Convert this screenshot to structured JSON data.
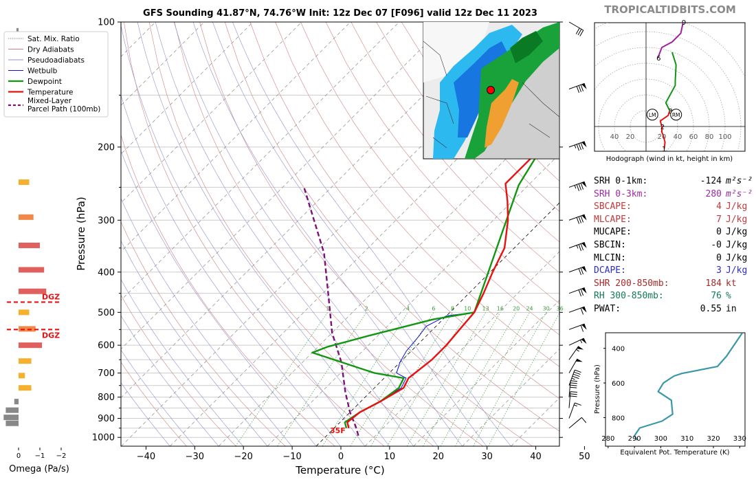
{
  "title": "GFS Sounding 41.87°N, 74.76°W Init: 12z Dec 07 [F096] valid 12z Dec 11 2023",
  "site": "TROPICALTIDBITS.COM",
  "colors": {
    "temperature": "#e81010",
    "dewpoint": "#129612",
    "wetbulb": "#1010d0",
    "parcel": "#7a1078",
    "dry_adiabat": "#d08080",
    "pseudo_adiabat": "#9090d0",
    "mixing_ratio": "#3a9a3a",
    "theta_e": "#3a97a8"
  },
  "chart_data": [
    {
      "type": "line",
      "name": "skew-t",
      "xlabel": "Temperature (°C)",
      "ylabel": "Pressure (hPa)",
      "xlim": [
        -40,
        50
      ],
      "ylim": [
        1050,
        100
      ],
      "y_scale": "log",
      "x_ticks": [
        -40,
        -30,
        -20,
        -10,
        0,
        10,
        20,
        30,
        40,
        50
      ],
      "y_ticks": [
        100,
        200,
        300,
        400,
        500,
        600,
        700,
        800,
        900,
        1000
      ],
      "legend": [
        {
          "label": "Sat. Mix. Ratio",
          "style": "mix"
        },
        {
          "label": "Dry Adiabats",
          "style": "dry"
        },
        {
          "label": "Pseudoadiabats",
          "style": "pseudo"
        },
        {
          "label": "Wetbulb",
          "style": "wetbulb"
        },
        {
          "label": "Dewpoint",
          "style": "dewpoint"
        },
        {
          "label": "Temperature",
          "style": "temperature"
        },
        {
          "label": "Mixed-Layer",
          "label2": "Parcel Path (100mb)",
          "style": "parcel"
        }
      ],
      "legend_position": "upper-left",
      "mixing_ratio_labels": [
        "1",
        "2",
        "4",
        "6",
        "8",
        "10",
        "13",
        "16",
        "20",
        "24",
        "30",
        "36"
      ],
      "surface_temp_label": "35F",
      "dgz_label": "DGZ",
      "dgz_pressures": [
        460,
        550
      ],
      "series": [
        {
          "key": "temperature",
          "points": [
            [
              3,
              950
            ],
            [
              1.5,
              920
            ],
            [
              2,
              870
            ],
            [
              4,
              820
            ],
            [
              6,
              760
            ],
            [
              5,
              720
            ],
            [
              6,
              650
            ],
            [
              6,
              600
            ],
            [
              5.5,
              550
            ],
            [
              5,
              500
            ],
            [
              3,
              450
            ],
            [
              0.5,
              400
            ],
            [
              -2,
              350
            ],
            [
              -7,
              300
            ],
            [
              -11,
              270
            ],
            [
              -15,
              245
            ],
            [
              -15,
              200
            ],
            [
              -9,
              175
            ],
            [
              -5,
              150
            ],
            [
              1,
              125
            ],
            [
              5,
              100
            ]
          ]
        },
        {
          "key": "dewpoint",
          "points": [
            [
              2.5,
              950
            ],
            [
              1,
              920
            ],
            [
              2,
              870
            ],
            [
              4,
              820
            ],
            [
              5,
              760
            ],
            [
              4,
              720
            ],
            [
              -3,
              700
            ],
            [
              -20,
              625
            ],
            [
              -18,
              605
            ],
            [
              -12,
              570
            ],
            [
              -2,
              520
            ],
            [
              5,
              500
            ],
            [
              -12,
              247
            ],
            [
              -15,
              200
            ],
            [
              -12,
              163
            ],
            [
              -22,
              143
            ],
            [
              -3,
              100
            ]
          ]
        },
        {
          "key": "wetbulb",
          "points": [
            [
              3,
              950
            ],
            [
              1.5,
              920
            ],
            [
              2,
              870
            ],
            [
              4,
              820
            ],
            [
              5.5,
              760
            ],
            [
              4.5,
              720
            ],
            [
              1.5,
              700
            ],
            [
              0,
              660
            ],
            [
              -1,
              620
            ],
            [
              -1.5,
              570
            ],
            [
              -2,
              540
            ],
            [
              0,
              510
            ],
            [
              5,
              500
            ]
          ]
        },
        {
          "key": "parcel",
          "points": [
            [
              6.5,
              990
            ],
            [
              4,
              940
            ],
            [
              0,
              870
            ],
            [
              -5,
              780
            ],
            [
              -12,
              660
            ],
            [
              -20,
              560
            ],
            [
              -28,
              460
            ],
            [
              -38,
              360
            ],
            [
              -56,
              248
            ]
          ]
        }
      ],
      "omega": {
        "label": "Omega (Pa/s)",
        "x_ticks": [
          "0",
          "−1",
          "−2"
        ],
        "bars": [
          {
            "p": 105,
            "v": 0.1
          },
          {
            "p": 145,
            "v": -0.2
          },
          {
            "p": 243,
            "v": -0.5
          },
          {
            "p": 295,
            "v": -0.7
          },
          {
            "p": 345,
            "v": -1.0
          },
          {
            "p": 395,
            "v": -1.2
          },
          {
            "p": 445,
            "v": -1.3
          },
          {
            "p": 500,
            "v": -0.5
          },
          {
            "p": 548,
            "v": -0.8
          },
          {
            "p": 600,
            "v": -1.1
          },
          {
            "p": 655,
            "v": -0.6
          },
          {
            "p": 710,
            "v": -0.3
          },
          {
            "p": 760,
            "v": -0.6
          },
          {
            "p": 820,
            "v": 0.2
          },
          {
            "p": 860,
            "v": 0.6
          },
          {
            "p": 895,
            "v": 0.7
          },
          {
            "p": 925,
            "v": 0.6
          }
        ]
      },
      "wind_barbs": [
        {
          "p": 100,
          "spd": 30,
          "dir": 300
        },
        {
          "p": 145,
          "spd": 80,
          "dir": 250
        },
        {
          "p": 200,
          "spd": 85,
          "dir": 250
        },
        {
          "p": 250,
          "spd": 85,
          "dir": 250
        },
        {
          "p": 300,
          "spd": 80,
          "dir": 250
        },
        {
          "p": 350,
          "spd": 75,
          "dir": 250
        },
        {
          "p": 400,
          "spd": 70,
          "dir": 250
        },
        {
          "p": 450,
          "spd": 70,
          "dir": 250
        },
        {
          "p": 500,
          "spd": 60,
          "dir": 250
        },
        {
          "p": 550,
          "spd": 60,
          "dir": 250
        },
        {
          "p": 600,
          "spd": 55,
          "dir": 245
        },
        {
          "p": 650,
          "spd": 55,
          "dir": 215
        },
        {
          "p": 700,
          "spd": 50,
          "dir": 210
        },
        {
          "p": 750,
          "spd": 45,
          "dir": 200
        },
        {
          "p": 800,
          "spd": 40,
          "dir": 185
        },
        {
          "p": 850,
          "spd": 30,
          "dir": 185
        },
        {
          "p": 900,
          "spd": 15,
          "dir": 200
        },
        {
          "p": 950,
          "spd": 10,
          "dir": 230
        }
      ]
    },
    {
      "type": "line",
      "name": "hodograph",
      "xlabel": "Hodograph (wind in kt, height in km)",
      "ring_labels": [
        "40",
        "20",
        "20",
        "40",
        "60",
        "80",
        "100"
      ],
      "point_labels": [
        "1",
        "2",
        "3",
        "6",
        "9"
      ],
      "storm_motion_labels": [
        "LM",
        "RM"
      ],
      "series": [
        {
          "name": "0-3 km",
          "color": "#e81010",
          "points": [
            [
              23,
              -28
            ],
            [
              24,
              -20
            ],
            [
              22,
              -12
            ],
            [
              20,
              -7
            ],
            [
              20,
              0
            ],
            [
              18,
              7
            ],
            [
              28,
              14
            ],
            [
              30,
              20
            ]
          ]
        },
        {
          "name": "3-6 km",
          "color": "#129612",
          "points": [
            [
              30,
              20
            ],
            [
              25,
              30
            ],
            [
              37,
              52
            ],
            [
              37,
              58
            ],
            [
              38,
              78
            ],
            [
              33,
              94
            ]
          ]
        },
        {
          "name": "6-9 km",
          "color": "#a020a0",
          "points": [
            [
              15,
              87
            ],
            [
              20,
              100
            ],
            [
              33,
              107
            ],
            [
              44,
              118
            ],
            [
              47,
              132
            ]
          ]
        },
        {
          "name": "9+ km",
          "color": "#1010d0",
          "points": [
            [
              47,
              132
            ],
            [
              48,
              135
            ],
            [
              60,
              136
            ],
            [
              72,
              136
            ],
            [
              74,
              134
            ]
          ]
        }
      ]
    },
    {
      "type": "line",
      "name": "theta-e",
      "xlabel": "Equivalent Pot. Temperature (K)",
      "ylabel": "Pressure (hPa)",
      "xlim": [
        279,
        332
      ],
      "ylim": [
        965,
        310
      ],
      "x_ticks": [
        280,
        290,
        300,
        310,
        320,
        330
      ],
      "y_ticks": [
        400,
        600,
        800
      ],
      "series": [
        {
          "name": "Theta-e",
          "points": [
            [
              291,
              930
            ],
            [
              290,
              905
            ],
            [
              292,
              860
            ],
            [
              300.5,
              820
            ],
            [
              304.5,
              780
            ],
            [
              304,
              700
            ],
            [
              299,
              650
            ],
            [
              301,
              600
            ],
            [
              305,
              560
            ],
            [
              308,
              545
            ],
            [
              321.5,
              505
            ],
            [
              325,
              445
            ],
            [
              327,
              400
            ],
            [
              331,
              310
            ]
          ]
        }
      ]
    }
  ],
  "stats": [
    {
      "label": "SRH 0-1km:",
      "value": "-124",
      "unit": "m²s⁻²",
      "color": "#000000"
    },
    {
      "label": "SRH 0-3km:",
      "value": "280",
      "unit": "m²s⁻²",
      "color": "#9b2aa0"
    },
    {
      "label": "SBCAPE:",
      "value": "4",
      "unit": "J/kg",
      "color": "#c0393b"
    },
    {
      "label": "MLCAPE:",
      "value": "7",
      "unit": "J/kg",
      "color": "#c0393b"
    },
    {
      "label": "MUCAPE:",
      "value": "0",
      "unit": "J/kg",
      "color": "#000000"
    },
    {
      "label": "SBCIN:",
      "value": "-0",
      "unit": "J/kg",
      "color": "#000000"
    },
    {
      "label": "MLCIN:",
      "value": "0",
      "unit": "J/kg",
      "color": "#000000"
    },
    {
      "label": "DCAPE:",
      "value": "3",
      "unit": "J/kg",
      "color": "#2b2bd0"
    },
    {
      "label": "SHR 200-850mb:",
      "value": "184",
      "unit": "kt",
      "color": "#a52a2a"
    },
    {
      "label": "RH 300-850mb:",
      "value": "76",
      "unit": "%",
      "color": "#117a55"
    },
    {
      "label": "PWAT:",
      "value": "0.55",
      "unit": "in",
      "color": "#000000"
    }
  ]
}
